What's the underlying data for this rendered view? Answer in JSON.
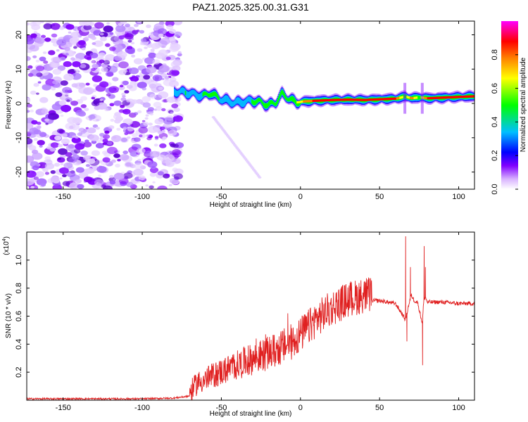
{
  "chart_data": [
    {
      "type": "heatmap",
      "title": "PAZ1.2025.325.00.31.G31",
      "xlabel": "Height of straight line (km)",
      "ylabel": "Frequency (Hz)",
      "xlim": [
        -173,
        110
      ],
      "ylim": [
        -25,
        24
      ],
      "xticks": [
        -150,
        -100,
        -50,
        0,
        50,
        100
      ],
      "xtick_labels": [
        "-150",
        "-100",
        "-50",
        "0",
        "50",
        "100"
      ],
      "yticks": [
        -20,
        -10,
        0,
        10,
        20
      ],
      "ytick_labels": [
        "-20",
        "-10",
        "0",
        "10",
        "20"
      ],
      "noise_region_x": [
        -173,
        -76
      ],
      "ridge": {
        "x": [
          -80,
          -73,
          -67,
          -62,
          -57,
          -52,
          -47,
          -42,
          -36,
          -31,
          -26,
          -21,
          -16,
          -12,
          -8,
          -3,
          2,
          10,
          20,
          30,
          40,
          50,
          60,
          66,
          70,
          75,
          80,
          90,
          100,
          110
        ],
        "freq": [
          3.5,
          3.2,
          2.6,
          2.2,
          3.0,
          1.5,
          0.8,
          0.2,
          0.5,
          0.8,
          0.5,
          -0.5,
          0.3,
          2.8,
          1.5,
          0.3,
          0.6,
          0.8,
          1.0,
          1.1,
          1.0,
          1.2,
          1.4,
          2.0,
          1.5,
          1.8,
          1.5,
          1.7,
          1.9,
          2.1
        ],
        "amplitude": [
          0.3,
          0.35,
          0.3,
          0.35,
          0.4,
          0.35,
          0.3,
          0.28,
          0.3,
          0.35,
          0.45,
          0.6,
          0.4,
          0.35,
          0.45,
          0.65,
          0.8,
          0.95,
          1.0,
          1.0,
          0.95,
          0.95,
          0.9,
          0.6,
          0.85,
          0.6,
          0.9,
          0.95,
          0.95,
          0.95
        ]
      },
      "colorbar": {
        "label": "Normalized spectral amplitude",
        "range": [
          0,
          1
        ],
        "ticks": [
          0.0,
          0.2,
          0.4,
          0.6,
          0.8
        ],
        "tick_labels": [
          "0.0",
          "0.2",
          "0.4",
          "0.6",
          "0.8"
        ],
        "colors": [
          "#ffffff",
          "#8000ff",
          "#0000ff",
          "#00c0ff",
          "#00ff00",
          "#ffff00",
          "#ff8000",
          "#ff0000",
          "#ff00ff"
        ]
      }
    },
    {
      "type": "line",
      "title": "",
      "xlabel": "Height of straight line (km)",
      "ylabel": "SNR (10 * v/v)",
      "scale_note": "(x10",
      "scale_exp": "4",
      "scale_close": ")",
      "xlim": [
        -173,
        110
      ],
      "ylim": [
        0,
        1.2
      ],
      "xticks": [
        -150,
        -100,
        -50,
        0,
        50,
        100
      ],
      "xtick_labels": [
        "-150",
        "-100",
        "-50",
        "0",
        "50",
        "100"
      ],
      "yticks": [
        0.2,
        0.4,
        0.6,
        0.8,
        1.0
      ],
      "ytick_labels": [
        "0.2",
        "0.4",
        "0.6",
        "0.8",
        "1.0"
      ],
      "color": "#e02020",
      "series": [
        {
          "name": "SNR",
          "x": [
            -173,
            -150,
            -125,
            -100,
            -80,
            -70,
            -65,
            -60,
            -55,
            -50,
            -45,
            -40,
            -35,
            -30,
            -25,
            -20,
            -15,
            -10,
            -5,
            0,
            5,
            10,
            20,
            30,
            40,
            50,
            55,
            60,
            64,
            66,
            67,
            68,
            70,
            72,
            74,
            76,
            77,
            78,
            79,
            80,
            85,
            90,
            100,
            110
          ],
          "y": [
            0.01,
            0.01,
            0.01,
            0.01,
            0.015,
            0.03,
            0.1,
            0.12,
            0.15,
            0.17,
            0.2,
            0.22,
            0.24,
            0.26,
            0.28,
            0.3,
            0.32,
            0.35,
            0.38,
            0.43,
            0.48,
            0.54,
            0.62,
            0.68,
            0.71,
            0.71,
            0.7,
            0.69,
            0.62,
            0.58,
            0.6,
            0.66,
            0.75,
            0.71,
            0.7,
            0.6,
            0.55,
            0.72,
            0.74,
            0.7,
            0.7,
            0.7,
            0.69,
            0.69
          ]
        }
      ],
      "spikes": [
        {
          "x": -64.5,
          "y": 0.19
        },
        {
          "x": -50.5,
          "y": 0.28
        },
        {
          "x": -33,
          "y": 0.39
        },
        {
          "x": -28,
          "y": 0.44
        },
        {
          "x": -22,
          "y": 0.47
        },
        {
          "x": -8,
          "y": 0.62
        },
        {
          "x": 66.5,
          "y": 1.17
        },
        {
          "x": 67.3,
          "y": 0.42
        },
        {
          "x": 69.5,
          "y": 0.95
        },
        {
          "x": 77.2,
          "y": 0.25
        },
        {
          "x": 78.2,
          "y": 1.1
        },
        {
          "x": 79,
          "y": 0.95
        }
      ]
    }
  ]
}
